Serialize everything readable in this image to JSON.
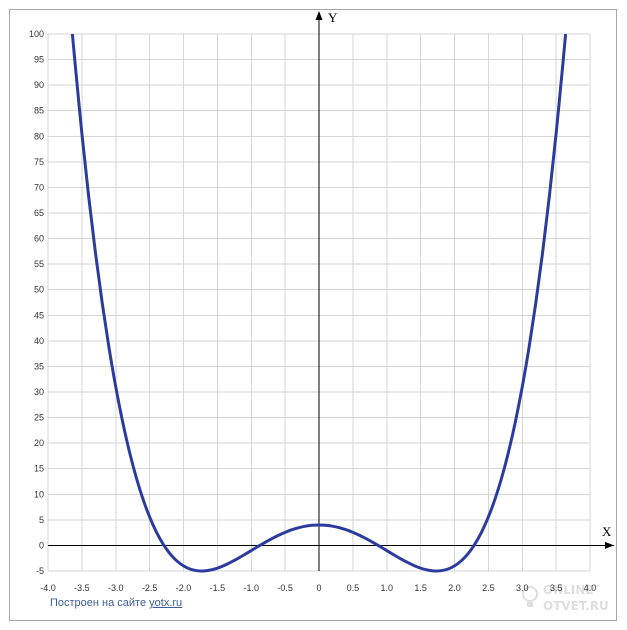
{
  "chart_data": {
    "type": "line",
    "xlabel": "X",
    "ylabel": "Y",
    "xlim": [
      -4,
      4
    ],
    "ylim": [
      -5,
      100
    ],
    "grid": true,
    "x_ticks": [
      "-4.0",
      "-3.5",
      "-3.0",
      "-2.5",
      "-2.0",
      "-1.5",
      "-1.0",
      "-0.5",
      "0",
      "0.5",
      "1.0",
      "1.5",
      "2.0",
      "2.5",
      "3.0",
      "3.5",
      "4.0"
    ],
    "y_ticks": [
      "100",
      "95",
      "90",
      "85",
      "80",
      "75",
      "70",
      "65",
      "60",
      "55",
      "50",
      "45",
      "40",
      "35",
      "30",
      "25",
      "20",
      "15",
      "10",
      "5",
      "0",
      "-5"
    ],
    "series": [
      {
        "color": "#2b3c9e",
        "x": [
          -3.64,
          -3.6,
          -3.5,
          -3.4,
          -3.3,
          -3.2,
          -3.1,
          -3.0,
          -2.9,
          -2.8,
          -2.7,
          -2.6,
          -2.5,
          -2.4,
          -2.3,
          -2.2,
          -2.1,
          -2.0,
          -1.9,
          -1.8,
          -1.7,
          -1.6,
          -1.5,
          -1.4,
          -1.3,
          -1.2,
          -1.1,
          -1.0,
          -0.9,
          -0.8,
          -0.7,
          -0.6,
          -0.5,
          -0.4,
          -0.3,
          -0.2,
          -0.1,
          0,
          0.1,
          0.2,
          0.3,
          0.4,
          0.5,
          0.6,
          0.7,
          0.8,
          0.9,
          1.0,
          1.1,
          1.2,
          1.3,
          1.4,
          1.5,
          1.6,
          1.7,
          1.8,
          1.9,
          2.0,
          2.1,
          2.2,
          2.3,
          2.4,
          2.5,
          2.6,
          2.7,
          2.8,
          2.9,
          3.0,
          3.1,
          3.2,
          3.3,
          3.4,
          3.5,
          3.6,
          3.64
        ],
        "y": [
          100,
          94.2,
          80.56,
          68.27,
          57.25,
          47.42,
          38.69,
          31,
          24.27,
          18.43,
          13.4,
          9.14,
          5.56,
          2.62,
          0.24,
          -1.61,
          -3.01,
          -4,
          -4.63,
          -4.94,
          -4.99,
          -4.81,
          -4.44,
          -3.92,
          -3.28,
          -2.57,
          -1.8,
          -1,
          -0.2,
          0.57,
          1.3,
          1.97,
          2.56,
          3.07,
          3.47,
          3.76,
          3.94,
          4,
          3.94,
          3.76,
          3.47,
          3.07,
          2.56,
          1.97,
          1.3,
          0.57,
          -0.2,
          -1,
          -1.8,
          -2.57,
          -3.28,
          -3.92,
          -4.44,
          -4.81,
          -4.99,
          -4.94,
          -4.63,
          -4,
          -3.01,
          -1.61,
          0.24,
          2.62,
          5.56,
          9.14,
          13.4,
          18.43,
          24.27,
          31,
          38.69,
          47.42,
          57.25,
          68.27,
          80.56,
          94.2,
          100
        ]
      }
    ]
  },
  "colors": {
    "grid": "#d6d6d6",
    "axis": "#000000",
    "frame": "#a8a8a8",
    "tick_text": "#333333",
    "footer": "#3c5f9c"
  },
  "footer": {
    "text": "Построен на сайте",
    "link": "yotx.ru"
  },
  "watermark": {
    "line1": "ONLINE",
    "line2": "OTVET.RU",
    "icon": "lightbulb-icon"
  }
}
